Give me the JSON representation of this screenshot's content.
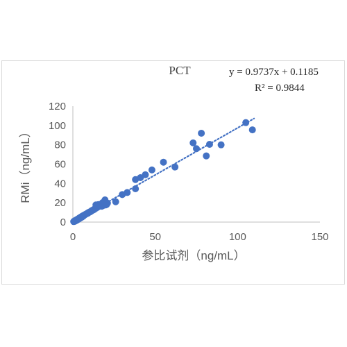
{
  "chart_data": {
    "type": "scatter",
    "title": "PCT",
    "xlabel": "参比试剂（ng/mL）",
    "ylabel": "RMi（ng/mL）",
    "xlim": [
      0,
      150
    ],
    "ylim": [
      0,
      120
    ],
    "xticks": [
      0,
      50,
      100,
      150
    ],
    "yticks": [
      0,
      20,
      40,
      60,
      80,
      100,
      120
    ],
    "xtick_labels": [
      "0",
      "50",
      "100",
      "150"
    ],
    "ytick_labels": [
      "0",
      "20",
      "40",
      "60",
      "80",
      "100",
      "120"
    ],
    "grid": false,
    "marker_color": "#4472c4",
    "trendline": {
      "type": "linear",
      "style": "dotted",
      "slope": 0.9737,
      "intercept": 0.1185,
      "x_range": [
        0,
        110
      ],
      "equation_label": "y = 0.9737x + 0.1185",
      "r2_label": "R² = 0.9844"
    },
    "points": [
      [
        0.5,
        0.5
      ],
      [
        0.8,
        0.9
      ],
      [
        1,
        1.2
      ],
      [
        1.2,
        0.8
      ],
      [
        1.5,
        1.6
      ],
      [
        1.8,
        1.4
      ],
      [
        2,
        2.2
      ],
      [
        2.2,
        1.8
      ],
      [
        2.5,
        2.6
      ],
      [
        2.8,
        2.4
      ],
      [
        3,
        3.1
      ],
      [
        3.2,
        2.8
      ],
      [
        3.5,
        3.7
      ],
      [
        3.8,
        3.4
      ],
      [
        4,
        4.3
      ],
      [
        4.3,
        4.0
      ],
      [
        4.5,
        4.8
      ],
      [
        4.8,
        4.5
      ],
      [
        5,
        5.3
      ],
      [
        5.3,
        5.0
      ],
      [
        5.5,
        5.9
      ],
      [
        5.8,
        5.6
      ],
      [
        6,
        6.4
      ],
      [
        6.3,
        6.1
      ],
      [
        6.5,
        6.9
      ],
      [
        7,
        7.2
      ],
      [
        7.5,
        7.8
      ],
      [
        8,
        8.3
      ],
      [
        8.5,
        8.8
      ],
      [
        9,
        9.1
      ],
      [
        9.5,
        9.9
      ],
      [
        10,
        10.3
      ],
      [
        10.5,
        10.6
      ],
      [
        11,
        11.2
      ],
      [
        11.5,
        11.9
      ],
      [
        12,
        12.2
      ],
      [
        12.5,
        12.8
      ],
      [
        13,
        13.1
      ],
      [
        13.5,
        14.0
      ],
      [
        14,
        14.3
      ],
      [
        14.5,
        15.0
      ],
      [
        15,
        15.4
      ],
      [
        15.5,
        16.1
      ],
      [
        16,
        16.6
      ],
      [
        16.5,
        17.2
      ],
      [
        17,
        17.5
      ],
      [
        14,
        17.8
      ],
      [
        15.5,
        18.1
      ],
      [
        17.5,
        16.4
      ],
      [
        18,
        18.4
      ],
      [
        18.5,
        17.2
      ],
      [
        19,
        19.5
      ],
      [
        19.5,
        21.0
      ],
      [
        20,
        17.8
      ],
      [
        20.5,
        18.3
      ],
      [
        18,
        20.1
      ],
      [
        21,
        19.6
      ],
      [
        19.5,
        23.0
      ],
      [
        26,
        21.0
      ],
      [
        30,
        28.5
      ],
      [
        33,
        30.6
      ],
      [
        38,
        34.5
      ],
      [
        38,
        44.0
      ],
      [
        41,
        46.0
      ],
      [
        44,
        49.0
      ],
      [
        48,
        54.0
      ],
      [
        55,
        62.0
      ],
      [
        62,
        57.0
      ],
      [
        73,
        82.0
      ],
      [
        75,
        76.0
      ],
      [
        78,
        92.0
      ],
      [
        81,
        68.5
      ],
      [
        83,
        80.5
      ],
      [
        90,
        80.0
      ],
      [
        105,
        103.0
      ],
      [
        109,
        95.5
      ]
    ]
  }
}
